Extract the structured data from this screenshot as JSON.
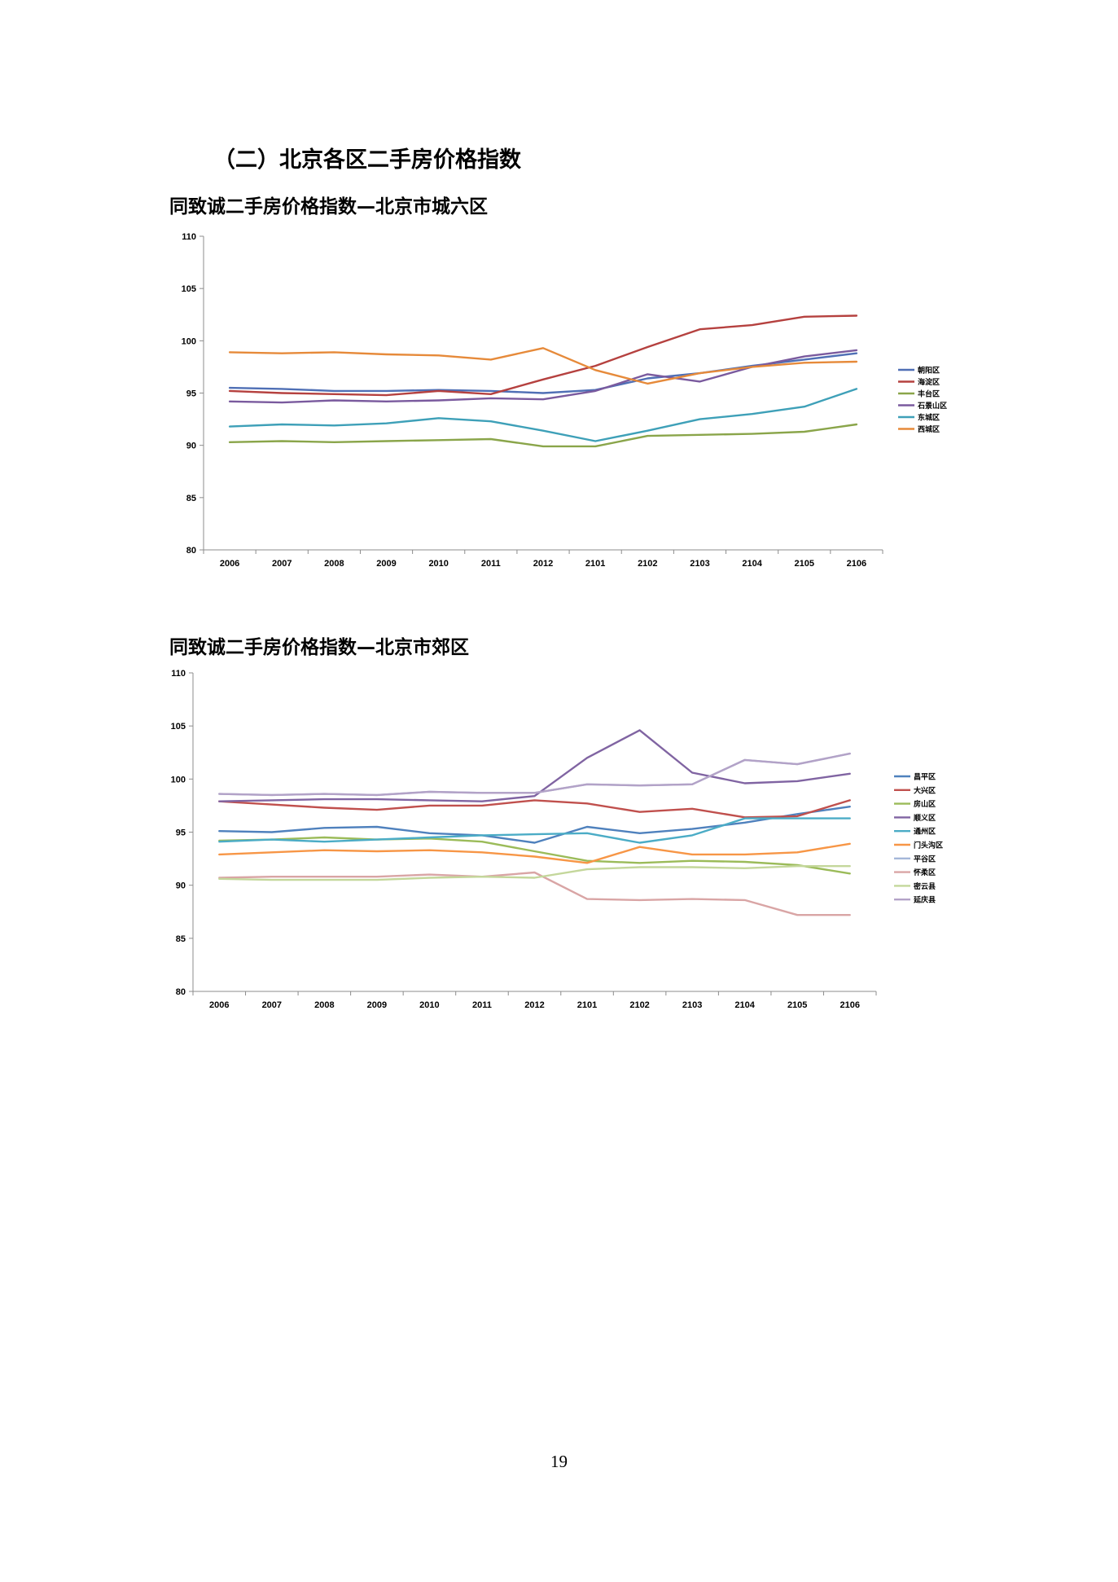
{
  "section_heading": "（二）北京各区二手房价格指数",
  "page_number": "19",
  "chart_data": [
    {
      "type": "line",
      "title": "同致诚二手房价格指数—北京市城六区",
      "categories": [
        "2006",
        "2007",
        "2008",
        "2009",
        "2010",
        "2011",
        "2012",
        "2101",
        "2102",
        "2103",
        "2104",
        "2105",
        "2106"
      ],
      "ylim": [
        80,
        110
      ],
      "yticks": [
        80,
        85,
        90,
        95,
        100,
        105,
        110
      ],
      "legend_position": "right",
      "grid": false,
      "series": [
        {
          "name": "朝阳区",
          "color": "#4F6FB5",
          "values": [
            95.5,
            95.4,
            95.2,
            95.2,
            95.3,
            95.2,
            95.0,
            95.3,
            96.4,
            96.9,
            97.6,
            98.2,
            98.8
          ]
        },
        {
          "name": "海淀区",
          "color": "#B5413F",
          "values": [
            95.2,
            95.0,
            94.9,
            94.8,
            95.2,
            94.9,
            96.3,
            97.6,
            99.4,
            101.1,
            101.5,
            102.3,
            102.4
          ]
        },
        {
          "name": "丰台区",
          "color": "#8AA54A",
          "values": [
            90.3,
            90.4,
            90.3,
            90.4,
            90.5,
            90.6,
            89.9,
            89.9,
            90.9,
            91.0,
            91.1,
            91.3,
            92.0
          ]
        },
        {
          "name": "石景山区",
          "color": "#7A5A9E",
          "values": [
            94.2,
            94.1,
            94.3,
            94.2,
            94.3,
            94.5,
            94.4,
            95.2,
            96.8,
            96.1,
            97.5,
            98.5,
            99.1
          ]
        },
        {
          "name": "东城区",
          "color": "#3EA0B8",
          "values": [
            91.8,
            92.0,
            91.9,
            92.1,
            92.6,
            92.3,
            91.4,
            90.4,
            91.4,
            92.5,
            93.0,
            93.7,
            95.4
          ]
        },
        {
          "name": "西城区",
          "color": "#E68A3A",
          "values": [
            98.9,
            98.8,
            98.9,
            98.7,
            98.6,
            98.2,
            99.3,
            97.2,
            95.9,
            96.9,
            97.5,
            97.9,
            98.0
          ]
        }
      ]
    },
    {
      "type": "line",
      "title": "同致诚二手房价格指数—北京市郊区",
      "categories": [
        "2006",
        "2007",
        "2008",
        "2009",
        "2010",
        "2011",
        "2012",
        "2101",
        "2102",
        "2103",
        "2104",
        "2105",
        "2106"
      ],
      "ylim": [
        80,
        110
      ],
      "yticks": [
        80,
        85,
        90,
        95,
        100,
        105,
        110
      ],
      "legend_position": "right",
      "grid": false,
      "series": [
        {
          "name": "昌平区",
          "color": "#4F81BD",
          "values": [
            95.1,
            95.0,
            95.4,
            95.5,
            94.9,
            94.7,
            94.0,
            95.5,
            94.9,
            95.3,
            95.9,
            96.7,
            97.4
          ]
        },
        {
          "name": "大兴区",
          "color": "#C0504D",
          "values": [
            97.9,
            97.6,
            97.3,
            97.1,
            97.5,
            97.5,
            98.0,
            97.7,
            96.9,
            97.2,
            96.4,
            96.5,
            98.0
          ]
        },
        {
          "name": "房山区",
          "color": "#9BBB59",
          "values": [
            94.2,
            94.3,
            94.5,
            94.3,
            94.4,
            94.1,
            93.2,
            92.3,
            92.1,
            92.3,
            92.2,
            91.9,
            91.1
          ]
        },
        {
          "name": "顺义区",
          "color": "#8064A2",
          "values": [
            97.9,
            98.0,
            98.1,
            98.1,
            98.0,
            97.9,
            98.4,
            102.0,
            104.6,
            100.6,
            99.6,
            99.8,
            100.5
          ]
        },
        {
          "name": "通州区",
          "color": "#4BACC6",
          "values": [
            94.1,
            94.3,
            94.1,
            94.3,
            94.5,
            94.7,
            94.8,
            94.9,
            94.0,
            94.7,
            96.3,
            96.3,
            96.3
          ]
        },
        {
          "name": "门头沟区",
          "color": "#F79646",
          "values": [
            92.9,
            93.1,
            93.3,
            93.2,
            93.3,
            93.1,
            92.7,
            92.1,
            93.6,
            92.9,
            92.9,
            93.1,
            93.9
          ]
        },
        {
          "name": "平谷区",
          "color": "#A5B7D9",
          "values": [
            98.6,
            98.5,
            98.6,
            98.5,
            98.8,
            98.7,
            98.7,
            99.5,
            99.4,
            99.5,
            101.8,
            101.4,
            102.4
          ]
        },
        {
          "name": "怀柔区",
          "color": "#D9A5A5",
          "values": [
            90.7,
            90.8,
            90.8,
            90.8,
            91.0,
            90.8,
            91.2,
            88.7,
            88.6,
            88.7,
            88.6,
            87.2,
            87.2
          ]
        },
        {
          "name": "密云县",
          "color": "#C4D79B",
          "values": [
            90.6,
            90.5,
            90.5,
            90.5,
            90.7,
            90.8,
            90.7,
            91.5,
            91.7,
            91.7,
            91.6,
            91.8,
            91.8
          ]
        },
        {
          "name": "延庆县",
          "color": "#B3A2C7",
          "values": [
            98.6,
            98.5,
            98.6,
            98.5,
            98.8,
            98.7,
            98.7,
            99.5,
            99.4,
            99.5,
            101.8,
            101.4,
            102.4
          ]
        }
      ]
    }
  ]
}
